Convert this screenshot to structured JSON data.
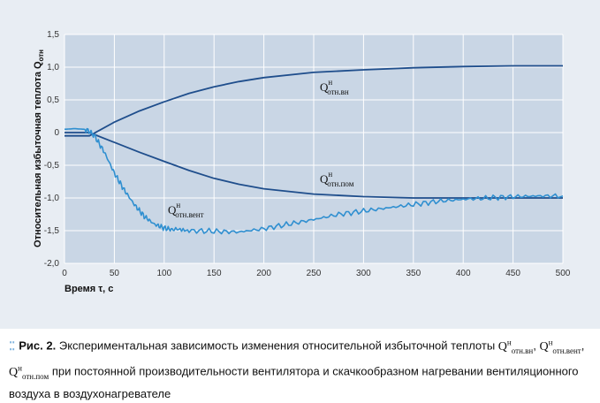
{
  "chart_data": {
    "type": "line",
    "xlabel": "Время τ, с",
    "ylabel": "Относительная избыточная теплота Q",
    "ylabel_sub": "отн",
    "xlim": [
      0,
      500
    ],
    "ylim": [
      -2.0,
      1.5
    ],
    "x_ticks": [
      "0",
      "50",
      "100",
      "150",
      "200",
      "250",
      "300",
      "350",
      "400",
      "450",
      "500"
    ],
    "y_ticks": [
      "1,5",
      "1,0",
      "0,5",
      "0",
      "-0,5",
      "-1,0",
      "-1,5",
      "-2,0"
    ],
    "grid": "vertical and horizontal, white",
    "series": [
      {
        "name": "Q отн.вн",
        "label": {
          "main": "Q",
          "sup": "н",
          "sub": "отн.вн"
        },
        "color": "#1f4e8c",
        "x": [
          0,
          25,
          50,
          75,
          100,
          125,
          150,
          175,
          200,
          250,
          300,
          350,
          400,
          450,
          500
        ],
        "y": [
          -0.05,
          -0.05,
          0.16,
          0.33,
          0.47,
          0.6,
          0.7,
          0.78,
          0.84,
          0.92,
          0.96,
          0.99,
          1.01,
          1.02,
          1.02
        ]
      },
      {
        "name": "Q отн.пом",
        "label": {
          "main": "Q",
          "sup": "н",
          "sub": "отн.пом"
        },
        "color": "#1f4e8c",
        "x": [
          0,
          25,
          50,
          75,
          100,
          125,
          150,
          175,
          200,
          250,
          300,
          350,
          400,
          450,
          500
        ],
        "y": [
          0.0,
          0.0,
          -0.15,
          -0.3,
          -0.44,
          -0.58,
          -0.7,
          -0.79,
          -0.86,
          -0.94,
          -0.98,
          -1.0,
          -1.0,
          -1.0,
          -1.0
        ]
      },
      {
        "name": "Q отн.вент",
        "label": {
          "main": "Q",
          "sup": "н",
          "sub": "отн.вент"
        },
        "color": "#2f8fd0",
        "x": [
          0,
          10,
          20,
          25,
          30,
          40,
          50,
          60,
          70,
          80,
          90,
          100,
          110,
          125,
          150,
          175,
          200,
          225,
          250,
          275,
          300,
          325,
          350,
          375,
          400,
          425,
          450,
          475,
          500
        ],
        "y": [
          0.05,
          0.06,
          0.05,
          0.02,
          -0.05,
          -0.3,
          -0.62,
          -0.88,
          -1.1,
          -1.28,
          -1.4,
          -1.46,
          -1.49,
          -1.5,
          -1.51,
          -1.52,
          -1.47,
          -1.4,
          -1.33,
          -1.25,
          -1.2,
          -1.15,
          -1.1,
          -1.05,
          -1.02,
          -1.0,
          -0.98,
          -0.97,
          -0.97
        ]
      }
    ]
  },
  "caption": {
    "fig_label": "Рис. 2.",
    "text1": "Экспериментальная зависимость изменения относительной избыточной теплоты",
    "sym": "Q",
    "sup": "н",
    "sub1": "отн.вн",
    "sub2": "отн.вент",
    "sub3": "отн.пом",
    "text2": "при постоянной производительности вентилятора и скачкообразном нагревании вентиляционного воздуха в воздухонагревателе"
  }
}
